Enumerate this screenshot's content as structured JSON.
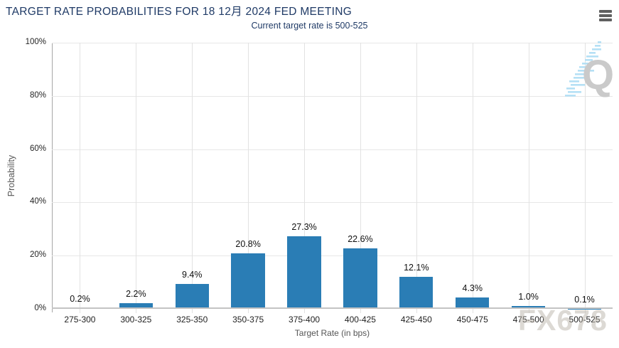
{
  "header": {
    "title": "TARGET RATE PROBABILITIES FOR 18 12月 2024 FED MEETING",
    "subtitle": "Current target rate is 500-525"
  },
  "menu": {
    "icon": "hamburger-menu-icon"
  },
  "watermarks": {
    "brand": "FX678",
    "logo_letter": "Q"
  },
  "colors": {
    "bar": "#2a7db5",
    "title_text": "#1f3a66",
    "gridline": "#e7e7e7",
    "axis_line": "#a6a6a6",
    "logo_dash_blue": "#b5e0f5",
    "logo_gray": "#cacaca"
  },
  "chart_data": {
    "type": "bar",
    "title": "TARGET RATE PROBABILITIES FOR 18 12月 2024 FED MEETING",
    "subtitle": "Current target rate is 500-525",
    "categories": [
      "275-300",
      "300-325",
      "325-350",
      "350-375",
      "375-400",
      "400-425",
      "425-450",
      "450-475",
      "475-500",
      "500-525"
    ],
    "values": [
      0.2,
      2.2,
      9.4,
      20.8,
      27.3,
      22.6,
      12.1,
      4.3,
      1.0,
      0.1
    ],
    "value_labels": [
      "0.2%",
      "2.2%",
      "9.4%",
      "20.8%",
      "27.3%",
      "22.6%",
      "12.1%",
      "4.3%",
      "1.0%",
      "0.1%"
    ],
    "xlabel": "Target Rate (in bps)",
    "ylabel": "Probability",
    "ylim": [
      0,
      100
    ],
    "yticks": [
      0,
      20,
      40,
      60,
      80,
      100
    ],
    "ytick_labels": [
      "0%",
      "20%",
      "40%",
      "60%",
      "80%",
      "100%"
    ],
    "grid": true,
    "legend": "none",
    "bar_color": "#2a7db5"
  }
}
